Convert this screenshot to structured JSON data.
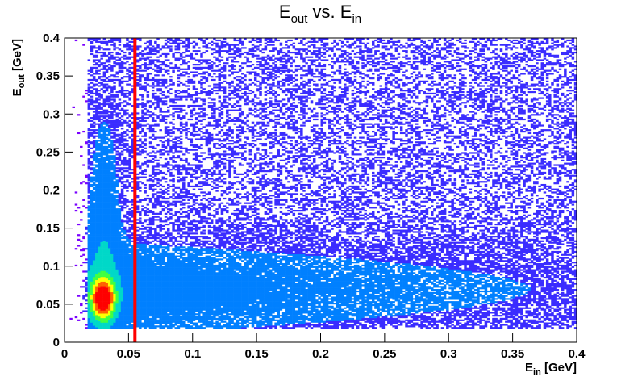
{
  "chart_data": {
    "type": "heatmap",
    "title": {
      "main": "E",
      "sub1": "out",
      "mid": " vs. E",
      "sub2": "in"
    },
    "xlabel": {
      "main": "E",
      "sub": "in",
      "rest": " [GeV]"
    },
    "ylabel": {
      "main": "E",
      "sub": "out",
      "rest": " [GeV]"
    },
    "xlim": [
      0,
      0.4
    ],
    "ylim": [
      0,
      0.4
    ],
    "x_ticks": [
      {
        "value": 0,
        "label": "0"
      },
      {
        "value": 0.05,
        "label": "0.05"
      },
      {
        "value": 0.1,
        "label": "0.1"
      },
      {
        "value": 0.15,
        "label": "0.15"
      },
      {
        "value": 0.2,
        "label": "0.2"
      },
      {
        "value": 0.25,
        "label": "0.25"
      },
      {
        "value": 0.3,
        "label": "0.3"
      },
      {
        "value": 0.35,
        "label": "0.35"
      },
      {
        "value": 0.4,
        "label": "0.4"
      }
    ],
    "y_ticks": [
      {
        "value": 0,
        "label": "0"
      },
      {
        "value": 0.05,
        "label": "0.05"
      },
      {
        "value": 0.1,
        "label": "0.1"
      },
      {
        "value": 0.15,
        "label": "0.15"
      },
      {
        "value": 0.2,
        "label": "0.2"
      },
      {
        "value": 0.25,
        "label": "0.25"
      },
      {
        "value": 0.3,
        "label": "0.3"
      },
      {
        "value": 0.35,
        "label": "0.35"
      },
      {
        "value": 0.4,
        "label": "0.4"
      }
    ],
    "cut_line": {
      "orientation": "vertical",
      "x": 0.055,
      "color": "#ff0000"
    },
    "density_features": [
      {
        "name": "peak",
        "x": 0.03,
        "y": 0.055,
        "relative_density": 1.0
      },
      {
        "name": "low-energy-column",
        "x_range": [
          0.02,
          0.04
        ],
        "y_range": [
          0.03,
          0.4
        ]
      },
      {
        "name": "diffuse-band",
        "x_range": [
          0.05,
          0.4
        ],
        "y_range": [
          0.02,
          0.15
        ]
      }
    ],
    "palette": [
      "#7a00ff",
      "#3a2cff",
      "#0080ff",
      "#00d8c8",
      "#40ff40",
      "#ffff00",
      "#ff6000",
      "#ff0000"
    ]
  }
}
